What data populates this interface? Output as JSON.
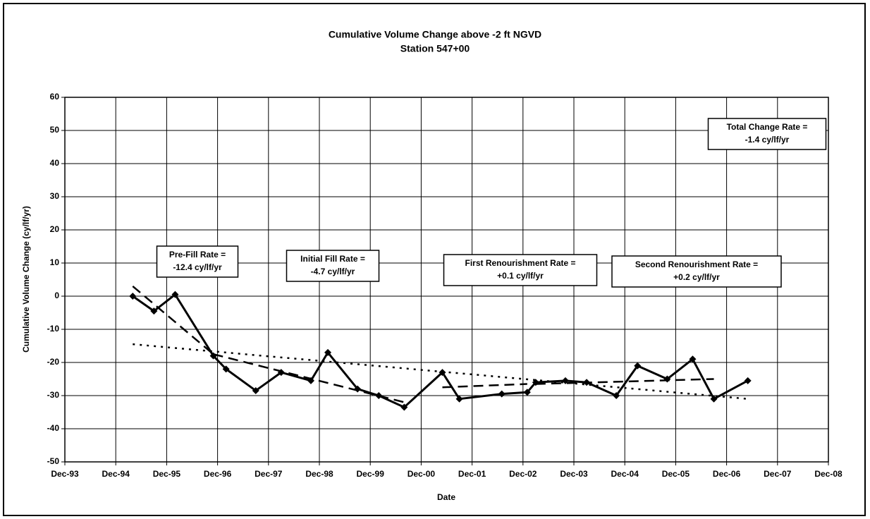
{
  "chart_data": {
    "type": "line",
    "title": [
      "Cumulative Volume Change above -2 ft NGVD",
      "Station 547+00"
    ],
    "x_label": "Date",
    "y_label": "Cumulative Volume Change (cy/lf/yr)",
    "xlim": [
      "1993-12",
      "2008-12"
    ],
    "xticks": [
      {
        "value": "1993-12",
        "label": "Dec-93"
      },
      {
        "value": "1994-12",
        "label": "Dec-94"
      },
      {
        "value": "1995-12",
        "label": "Dec-95"
      },
      {
        "value": "1996-12",
        "label": "Dec-96"
      },
      {
        "value": "1997-12",
        "label": "Dec-97"
      },
      {
        "value": "1998-12",
        "label": "Dec-98"
      },
      {
        "value": "1999-12",
        "label": "Dec-99"
      },
      {
        "value": "2000-12",
        "label": "Dec-00"
      },
      {
        "value": "2001-12",
        "label": "Dec-01"
      },
      {
        "value": "2002-12",
        "label": "Dec-02"
      },
      {
        "value": "2003-12",
        "label": "Dec-03"
      },
      {
        "value": "2004-12",
        "label": "Dec-04"
      },
      {
        "value": "2005-12",
        "label": "Dec-05"
      },
      {
        "value": "2006-12",
        "label": "Dec-06"
      },
      {
        "value": "2007-12",
        "label": "Dec-07"
      },
      {
        "value": "2008-12",
        "label": "Dec-08"
      }
    ],
    "ylim": [
      -50,
      60
    ],
    "yticks": [
      -50,
      -40,
      -30,
      -20,
      -10,
      0,
      10,
      20,
      30,
      40,
      50,
      60
    ],
    "grid": true,
    "series": [
      {
        "color": "#000000",
        "dash": "solid",
        "markers": true,
        "x": [
          "1995-04",
          "1995-09",
          "1996-02",
          "1996-11",
          "1997-02",
          "1997-09",
          "1998-03",
          "1998-10",
          "1999-02",
          "1999-09",
          "2000-02",
          "2000-08",
          "2001-05",
          "2001-09",
          "2002-07",
          "2003-01",
          "2003-03",
          "2003-10",
          "2004-03",
          "2004-10",
          "2005-03",
          "2005-10",
          "2006-04",
          "2006-09",
          "2007-05"
        ],
        "values": [
          0,
          -4.5,
          0.5,
          -18,
          -22,
          -28.5,
          -23,
          -25.5,
          -17,
          -28,
          -30,
          -33.5,
          -23,
          -31,
          -29.5,
          -29,
          -26,
          -25.5,
          -26,
          -30,
          -21,
          -25,
          -19,
          -31,
          -25.5
        ]
      },
      {
        "color": "#000000",
        "dash": "dashed",
        "markers": false,
        "x": [
          "1995-04",
          "1996-11"
        ],
        "values": [
          3,
          -17.5
        ]
      },
      {
        "color": "#000000",
        "dash": "dashed",
        "markers": false,
        "x": [
          "1996-11",
          "2000-08"
        ],
        "values": [
          -17.5,
          -32
        ]
      },
      {
        "color": "#000000",
        "dash": "dashed",
        "markers": false,
        "x": [
          "2001-05",
          "2003-01"
        ],
        "values": [
          -27.5,
          -26.5
        ]
      },
      {
        "color": "#000000",
        "dash": "dashed",
        "markers": false,
        "x": [
          "2003-03",
          "2006-09"
        ],
        "values": [
          -26.5,
          -25
        ]
      },
      {
        "color": "#000000",
        "dash": "dotted",
        "markers": false,
        "x": [
          "1995-04",
          "2007-05"
        ],
        "values": [
          -14.5,
          -31
        ]
      }
    ],
    "annotations": [
      [
        "Pre-Fill Rate =",
        "-12.4 cy/lf/yr"
      ],
      [
        "Initial Fill Rate =",
        "-4.7 cy/lf/yr"
      ],
      [
        "First Renourishment Rate =",
        "+0.1 cy/lf/yr"
      ],
      [
        "Second Renourishment Rate =",
        "+0.2 cy/lf/yr"
      ],
      [
        "Total Change Rate =",
        "-1.4 cy/lf/yr"
      ]
    ]
  }
}
